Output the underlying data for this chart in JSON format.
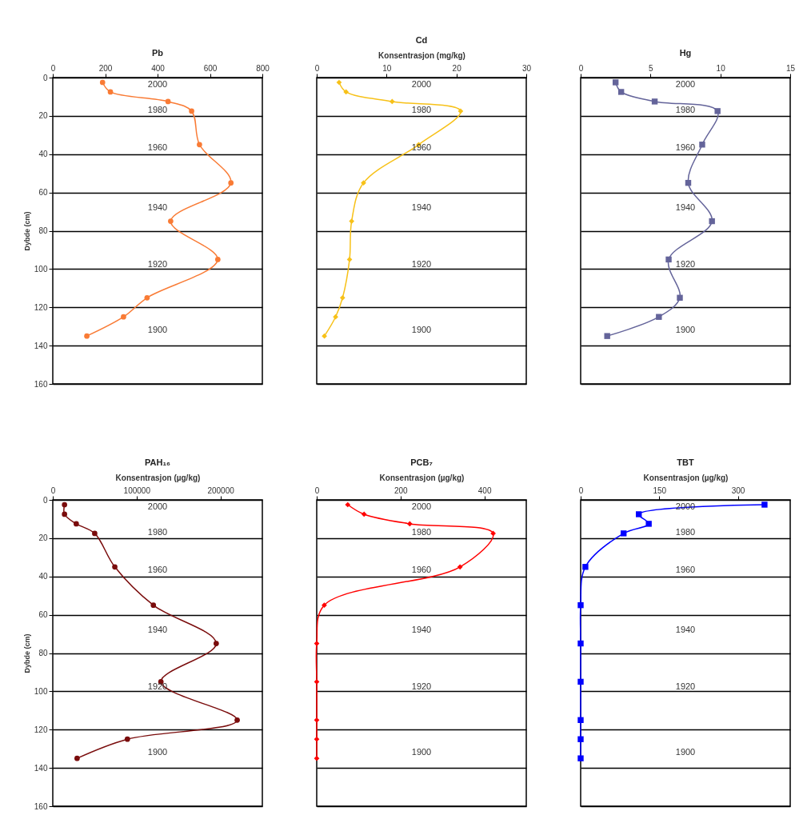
{
  "chart_data": [
    {
      "type": "line",
      "title": "Pb",
      "ylabel": "Dybde (cm)",
      "xlim": [
        0,
        800
      ],
      "xticks": [
        0,
        200,
        400,
        600,
        800
      ],
      "ylim": [
        160,
        0
      ],
      "yticks": [
        0,
        20,
        40,
        60,
        80,
        100,
        120,
        140,
        160
      ],
      "grid": "y",
      "marker": "circle",
      "series": [
        {
          "color": "#f97b35",
          "x": [
            190,
            220,
            440,
            530,
            560,
            680,
            450,
            630,
            360,
            270,
            130
          ],
          "values": [
            2.5,
            7.5,
            12.5,
            17.5,
            35,
            55,
            75,
            95,
            115,
            125,
            135
          ]
        }
      ],
      "annotations": [
        "2000",
        "1980",
        "1960",
        "1940",
        "1920",
        "1900"
      ]
    },
    {
      "type": "line",
      "title": "Cd",
      "xlabel": "Konsentrasjon (mg/kg)",
      "xlim": [
        0,
        30
      ],
      "xticks": [
        0,
        10,
        20,
        30
      ],
      "ylim": [
        160,
        0
      ],
      "yticks": [
        0,
        20,
        40,
        60,
        80,
        100,
        120,
        140,
        160
      ],
      "grid": "y",
      "marker": "diamond",
      "tick_labels": "x",
      "series": [
        {
          "color": "#f7c118",
          "x": [
            3.2,
            4.2,
            10.8,
            20.6,
            14.6,
            6.7,
            5.0,
            4.7,
            3.7,
            2.7,
            1.1
          ],
          "values": [
            2.5,
            7.5,
            12.5,
            17.5,
            35,
            55,
            75,
            95,
            115,
            125,
            135
          ]
        }
      ],
      "annotations": [
        "2000",
        "1980",
        "1960",
        "1940",
        "1920",
        "1900"
      ]
    },
    {
      "type": "line",
      "title": "Hg",
      "xlim": [
        0,
        15
      ],
      "xticks": [
        0,
        5,
        10,
        15
      ],
      "ylim": [
        160,
        0
      ],
      "yticks": [
        0,
        20,
        40,
        60,
        80,
        100,
        120,
        140,
        160
      ],
      "grid": "y",
      "marker": "square",
      "tick_labels": "x",
      "series": [
        {
          "color": "#64649a",
          "x": [
            2.5,
            2.9,
            5.3,
            9.8,
            8.7,
            7.7,
            9.4,
            6.3,
            7.1,
            5.6,
            1.9
          ],
          "values": [
            2.5,
            7.5,
            12.5,
            17.5,
            35,
            55,
            75,
            95,
            115,
            125,
            135
          ]
        }
      ],
      "annotations": [
        "2000",
        "1980",
        "1960",
        "1940",
        "1920",
        "1900"
      ]
    },
    {
      "type": "line",
      "title": "PAH₁₆",
      "xlabel": "Konsentrasjon (µg/kg)",
      "ylabel": "Dybde (cm)",
      "xlim": [
        0,
        250000
      ],
      "xticks": [
        0,
        100000,
        200000
      ],
      "ylim": [
        160,
        0
      ],
      "yticks": [
        0,
        20,
        40,
        60,
        80,
        100,
        120,
        140,
        160
      ],
      "grid": "y",
      "marker": "circle",
      "series": [
        {
          "color": "#7a0c0c",
          "x": [
            14000,
            14000,
            28000,
            50000,
            74000,
            120000,
            195000,
            129000,
            220000,
            89000,
            29000
          ],
          "values": [
            2.5,
            7.5,
            12.5,
            17.5,
            35,
            55,
            75,
            95,
            115,
            125,
            135
          ]
        }
      ],
      "annotations": [
        "2000",
        "1980",
        "1960",
        "1940",
        "1920",
        "1900"
      ]
    },
    {
      "type": "line",
      "title": "PCB₇",
      "xlabel": "Konsentrasjon (µg/kg)",
      "xlim": [
        0,
        500
      ],
      "xticks": [
        0,
        200,
        400
      ],
      "ylim": [
        160,
        0
      ],
      "yticks": [
        0,
        20,
        40,
        60,
        80,
        100,
        120,
        140,
        160
      ],
      "grid": "y",
      "marker": "diamond",
      "tick_labels": "x",
      "series": [
        {
          "color": "#ff0000",
          "x": [
            74,
            113,
            222,
            421,
            342,
            18,
            0,
            0,
            0,
            0,
            0
          ],
          "values": [
            2.5,
            7.5,
            12.5,
            17.5,
            35,
            55,
            75,
            95,
            115,
            125,
            135
          ]
        }
      ],
      "annotations": [
        "2000",
        "1980",
        "1960",
        "1940",
        "1920",
        "1900"
      ]
    },
    {
      "type": "line",
      "title": "TBT",
      "xlabel": "Konsentrasjon (µg/kg)",
      "xlim": [
        0,
        400
      ],
      "xticks": [
        0,
        150,
        300
      ],
      "ylim": [
        160,
        0
      ],
      "yticks": [
        0,
        20,
        40,
        60,
        80,
        100,
        120,
        140,
        160
      ],
      "grid": "y",
      "marker": "square",
      "tick_labels": "x",
      "series": [
        {
          "color": "#0000ff",
          "x": [
            351,
            111,
            130,
            82,
            9,
            0,
            0,
            0,
            0,
            0,
            0
          ],
          "values": [
            2.5,
            7.5,
            12.5,
            17.5,
            35,
            55,
            75,
            95,
            115,
            125,
            135
          ]
        }
      ],
      "annotations": [
        "2000",
        "1980",
        "1960",
        "1940",
        "1920",
        "1900"
      ]
    }
  ]
}
